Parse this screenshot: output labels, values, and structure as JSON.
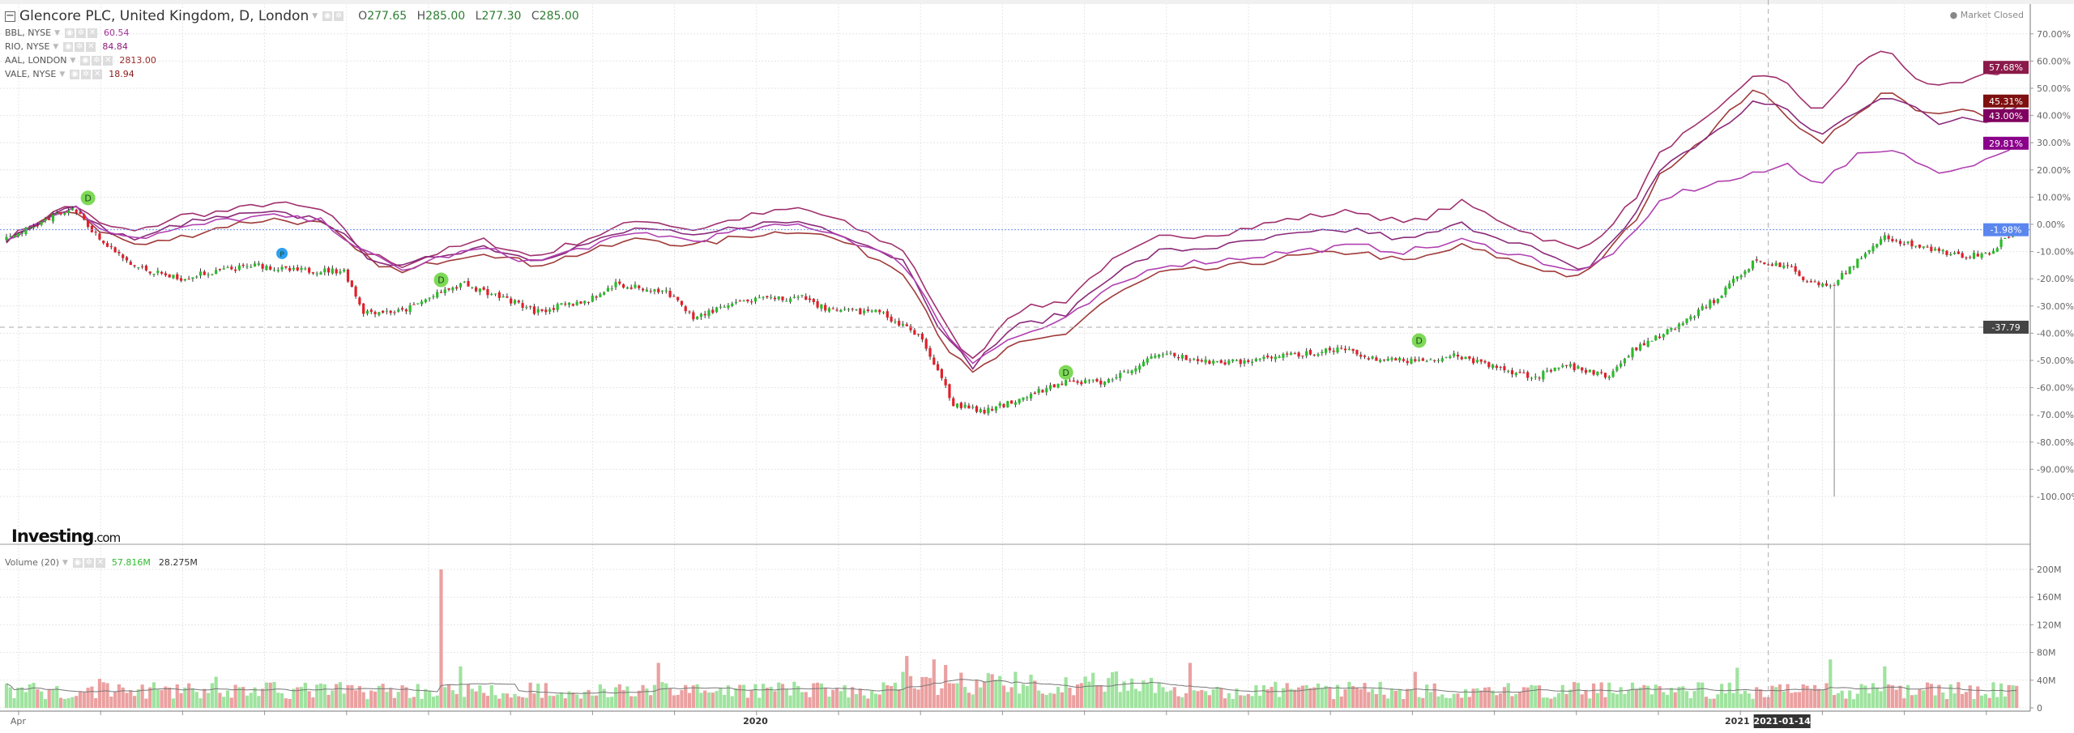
{
  "legend": {
    "title": "Glencore PLC, United Kingdom, D, London",
    "ohlc": {
      "o_label": "O",
      "o": "277.65",
      "h_label": "H",
      "h": "285.00",
      "l_label": "L",
      "l": "277.30",
      "c_label": "C",
      "c": "285.00"
    },
    "comparisons": [
      {
        "label": "BBL, NYSE",
        "value": "60.54",
        "color": "#a0309a"
      },
      {
        "label": "RIO, NYSE",
        "value": "84.84",
        "color": "#8e1a7a"
      },
      {
        "label": "AAL, LONDON",
        "value": "2813.00",
        "color": "#9a2a2a"
      },
      {
        "label": "VALE, NYSE",
        "value": "18.94",
        "color": "#8b1a1a"
      }
    ],
    "market_status": "Market Closed",
    "volume_label": "Volume (20)",
    "volume_value": "57.816M",
    "volume_ma_value": "28.275M"
  },
  "logo": {
    "main": "Investing",
    "suffix": ".com"
  },
  "colors": {
    "up": "#2dbb2d",
    "down": "#e0202a",
    "vol_up": "#9fe39f",
    "vol_down": "#eba0a0",
    "grid": "#e6e6e6"
  },
  "chart_data": {
    "type": "candlestick-comparison",
    "y_axis": {
      "min": -100,
      "max": 70,
      "step": 10,
      "unit": "%",
      "ticks": [
        "70.00%",
        "60.00%",
        "50.00%",
        "40.00%",
        "30.00%",
        "20.00%",
        "10.00%",
        "0.00%",
        "-10.00%",
        "-20.00%",
        "-30.00%",
        "-40.00%",
        "-50.00%",
        "-60.00%",
        "-70.00%",
        "-80.00%",
        "-90.00%",
        "-100.00%"
      ]
    },
    "volume_axis": {
      "min": 0,
      "max": 200,
      "unit": "M",
      "ticks": [
        "0",
        "40M",
        "80M",
        "120M",
        "160M",
        "200M"
      ]
    },
    "x_axis": {
      "labels": [
        {
          "text": "Apr",
          "day": 3
        },
        {
          "text": "2020",
          "day": 193
        },
        {
          "text": "2021",
          "day": 446
        }
      ],
      "crosshair_label": "2021-01-14",
      "crosshair_day": 454
    },
    "crosshair_value": "-37.79",
    "crosshair_pct": -37.79,
    "last_price_label": "-1.98%",
    "last_pct": -1.98,
    "main_series_waypoints": [
      [
        2,
        -4
      ],
      [
        17,
        6
      ],
      [
        24,
        -5
      ],
      [
        32,
        -15
      ],
      [
        44,
        -20
      ],
      [
        55,
        -17
      ],
      [
        65,
        -15
      ],
      [
        73,
        -17
      ],
      [
        87,
        -17
      ],
      [
        92,
        -32
      ],
      [
        102,
        -32
      ],
      [
        109,
        -27
      ],
      [
        118,
        -22
      ],
      [
        130,
        -28
      ],
      [
        136,
        -32
      ],
      [
        150,
        -28
      ],
      [
        157,
        -22
      ],
      [
        170,
        -25
      ],
      [
        177,
        -34
      ],
      [
        191,
        -28
      ],
      [
        205,
        -27
      ],
      [
        213,
        -32
      ],
      [
        225,
        -32
      ],
      [
        235,
        -41
      ],
      [
        240,
        -53
      ],
      [
        244,
        -66
      ],
      [
        252,
        -69
      ],
      [
        263,
        -63
      ],
      [
        273,
        -58
      ],
      [
        283,
        -58
      ],
      [
        290,
        -53
      ],
      [
        297,
        -47
      ],
      [
        303,
        -49
      ],
      [
        314,
        -51
      ],
      [
        327,
        -49
      ],
      [
        344,
        -46
      ],
      [
        355,
        -50
      ],
      [
        365,
        -50
      ],
      [
        373,
        -48
      ],
      [
        385,
        -53
      ],
      [
        394,
        -56
      ],
      [
        402,
        -52
      ],
      [
        413,
        -56
      ],
      [
        419,
        -46
      ],
      [
        430,
        -38
      ],
      [
        440,
        -28
      ],
      [
        450,
        -14
      ],
      [
        459,
        -15
      ],
      [
        465,
        -22
      ],
      [
        471,
        -22
      ],
      [
        481,
        -7
      ],
      [
        484,
        -5
      ],
      [
        491,
        -7
      ],
      [
        505,
        -12
      ],
      [
        511,
        -10
      ],
      [
        518,
        -1.98
      ]
    ],
    "outlier_wick": {
      "day": 471,
      "low": -100
    },
    "comparison_series": [
      {
        "name": "BBL, NYSE",
        "end_label": "57.68%",
        "color": "#a0306e",
        "label_bg": "#8b1a4a",
        "points": [
          [
            2,
            -4
          ],
          [
            17,
            8
          ],
          [
            24,
            0
          ],
          [
            34,
            -3
          ],
          [
            44,
            3
          ],
          [
            58,
            5
          ],
          [
            68,
            8
          ],
          [
            82,
            5
          ],
          [
            92,
            -10
          ],
          [
            102,
            -15
          ],
          [
            112,
            -10
          ],
          [
            123,
            -6
          ],
          [
            136,
            -12
          ],
          [
            150,
            -5
          ],
          [
            164,
            2
          ],
          [
            177,
            -2
          ],
          [
            191,
            3
          ],
          [
            205,
            6
          ],
          [
            215,
            1
          ],
          [
            232,
            -10
          ],
          [
            242,
            -38
          ],
          [
            249,
            -50
          ],
          [
            259,
            -32
          ],
          [
            273,
            -28
          ],
          [
            283,
            -15
          ],
          [
            297,
            -5
          ],
          [
            314,
            -3
          ],
          [
            331,
            2
          ],
          [
            348,
            5
          ],
          [
            361,
            0
          ],
          [
            375,
            8
          ],
          [
            392,
            -3
          ],
          [
            406,
            -10
          ],
          [
            419,
            8
          ],
          [
            427,
            28
          ],
          [
            440,
            40
          ],
          [
            450,
            55
          ],
          [
            459,
            52
          ],
          [
            467,
            40
          ],
          [
            477,
            58
          ],
          [
            484,
            65
          ],
          [
            491,
            55
          ],
          [
            498,
            50
          ],
          [
            505,
            52
          ],
          [
            511,
            55
          ],
          [
            518,
            57.68
          ]
        ]
      },
      {
        "name": "AAL, LONDON",
        "end_label": "45.31%",
        "color": "#a03a3a",
        "label_bg": "#7f1010",
        "points": [
          [
            2,
            -4
          ],
          [
            17,
            6
          ],
          [
            24,
            -2
          ],
          [
            34,
            -8
          ],
          [
            44,
            -5
          ],
          [
            58,
            0
          ],
          [
            68,
            2
          ],
          [
            82,
            0
          ],
          [
            92,
            -12
          ],
          [
            102,
            -18
          ],
          [
            112,
            -13
          ],
          [
            123,
            -10
          ],
          [
            136,
            -15
          ],
          [
            150,
            -10
          ],
          [
            164,
            -5
          ],
          [
            177,
            -8
          ],
          [
            191,
            -4
          ],
          [
            205,
            -2
          ],
          [
            215,
            -6
          ],
          [
            232,
            -18
          ],
          [
            242,
            -45
          ],
          [
            249,
            -55
          ],
          [
            259,
            -45
          ],
          [
            273,
            -40
          ],
          [
            283,
            -28
          ],
          [
            297,
            -18
          ],
          [
            314,
            -16
          ],
          [
            331,
            -12
          ],
          [
            348,
            -10
          ],
          [
            361,
            -14
          ],
          [
            375,
            -8
          ],
          [
            392,
            -15
          ],
          [
            406,
            -20
          ],
          [
            419,
            0
          ],
          [
            427,
            20
          ],
          [
            440,
            35
          ],
          [
            450,
            50
          ],
          [
            459,
            40
          ],
          [
            467,
            30
          ],
          [
            477,
            40
          ],
          [
            484,
            50
          ],
          [
            491,
            42
          ],
          [
            498,
            40
          ],
          [
            505,
            42
          ],
          [
            511,
            40
          ],
          [
            518,
            45.31
          ]
        ]
      },
      {
        "name": "VALE, NYSE",
        "end_label": "43.00%",
        "color": "#8a2a7a",
        "label_bg": "#800060",
        "points": [
          [
            2,
            -4
          ],
          [
            17,
            7
          ],
          [
            24,
            -1
          ],
          [
            34,
            -6
          ],
          [
            44,
            0
          ],
          [
            58,
            3
          ],
          [
            68,
            4
          ],
          [
            82,
            2
          ],
          [
            92,
            -11
          ],
          [
            102,
            -16
          ],
          [
            112,
            -11
          ],
          [
            123,
            -8
          ],
          [
            136,
            -13
          ],
          [
            150,
            -7
          ],
          [
            164,
            -1
          ],
          [
            177,
            -5
          ],
          [
            191,
            0
          ],
          [
            205,
            1
          ],
          [
            215,
            -3
          ],
          [
            232,
            -14
          ],
          [
            242,
            -42
          ],
          [
            249,
            -52
          ],
          [
            259,
            -38
          ],
          [
            273,
            -33
          ],
          [
            283,
            -20
          ],
          [
            297,
            -10
          ],
          [
            314,
            -8
          ],
          [
            331,
            -4
          ],
          [
            348,
            -2
          ],
          [
            361,
            -6
          ],
          [
            375,
            0
          ],
          [
            392,
            -8
          ],
          [
            406,
            -18
          ],
          [
            419,
            2
          ],
          [
            427,
            22
          ],
          [
            440,
            33
          ],
          [
            450,
            45
          ],
          [
            459,
            42
          ],
          [
            467,
            32
          ],
          [
            477,
            42
          ],
          [
            484,
            48
          ],
          [
            491,
            43
          ],
          [
            498,
            37
          ],
          [
            505,
            40
          ],
          [
            511,
            38
          ],
          [
            518,
            43
          ]
        ]
      },
      {
        "name": "RIO, NYSE",
        "end_label": "29.81%",
        "color": "#b040b0",
        "label_bg": "#8b008b",
        "points": [
          [
            2,
            -4
          ],
          [
            17,
            7
          ],
          [
            24,
            -1
          ],
          [
            34,
            -5
          ],
          [
            44,
            -2
          ],
          [
            58,
            2
          ],
          [
            68,
            3
          ],
          [
            82,
            1
          ],
          [
            92,
            -10
          ],
          [
            102,
            -17
          ],
          [
            112,
            -12
          ],
          [
            123,
            -9
          ],
          [
            136,
            -14
          ],
          [
            150,
            -8
          ],
          [
            164,
            -3
          ],
          [
            177,
            -6
          ],
          [
            191,
            -2
          ],
          [
            205,
            0
          ],
          [
            215,
            -4
          ],
          [
            232,
            -15
          ],
          [
            242,
            -40
          ],
          [
            249,
            -50
          ],
          [
            259,
            -42
          ],
          [
            273,
            -35
          ],
          [
            283,
            -25
          ],
          [
            297,
            -15
          ],
          [
            314,
            -13
          ],
          [
            331,
            -10
          ],
          [
            348,
            -8
          ],
          [
            361,
            -10
          ],
          [
            375,
            -6
          ],
          [
            392,
            -12
          ],
          [
            406,
            -18
          ],
          [
            419,
            -5
          ],
          [
            427,
            10
          ],
          [
            440,
            15
          ],
          [
            450,
            18
          ],
          [
            459,
            22
          ],
          [
            467,
            15
          ],
          [
            477,
            25
          ],
          [
            484,
            28
          ],
          [
            491,
            25
          ],
          [
            498,
            18
          ],
          [
            505,
            22
          ],
          [
            511,
            24
          ],
          [
            518,
            29.81
          ]
        ]
      }
    ],
    "markers": [
      {
        "type": "dividend",
        "text": "D",
        "day": 21,
        "pct": 9.7,
        "color": "#7ed957"
      },
      {
        "type": "split",
        "text": "P",
        "day": 71,
        "pct": -10.7,
        "color": "#2aa0f0"
      },
      {
        "type": "dividend",
        "text": "D",
        "day": 112,
        "pct": -20.4,
        "color": "#7ed957"
      },
      {
        "type": "dividend",
        "text": "D",
        "day": 273,
        "pct": -54.4,
        "color": "#7ed957"
      },
      {
        "type": "dividend",
        "text": "D",
        "day": 364,
        "pct": -42.7,
        "color": "#7ed957"
      }
    ],
    "volume": {
      "base_m": 28,
      "spikes": [
        [
          112,
          200
        ],
        [
          24,
          42
        ],
        [
          54,
          45
        ],
        [
          117,
          60
        ],
        [
          168,
          65
        ],
        [
          232,
          75
        ],
        [
          239,
          70
        ],
        [
          242,
          62
        ],
        [
          264,
          48
        ],
        [
          305,
          65
        ],
        [
          363,
          52
        ],
        [
          446,
          58
        ],
        [
          470,
          70
        ],
        [
          484,
          60
        ]
      ],
      "last_m": 57.816,
      "ma_last_m": 28.275
    }
  }
}
